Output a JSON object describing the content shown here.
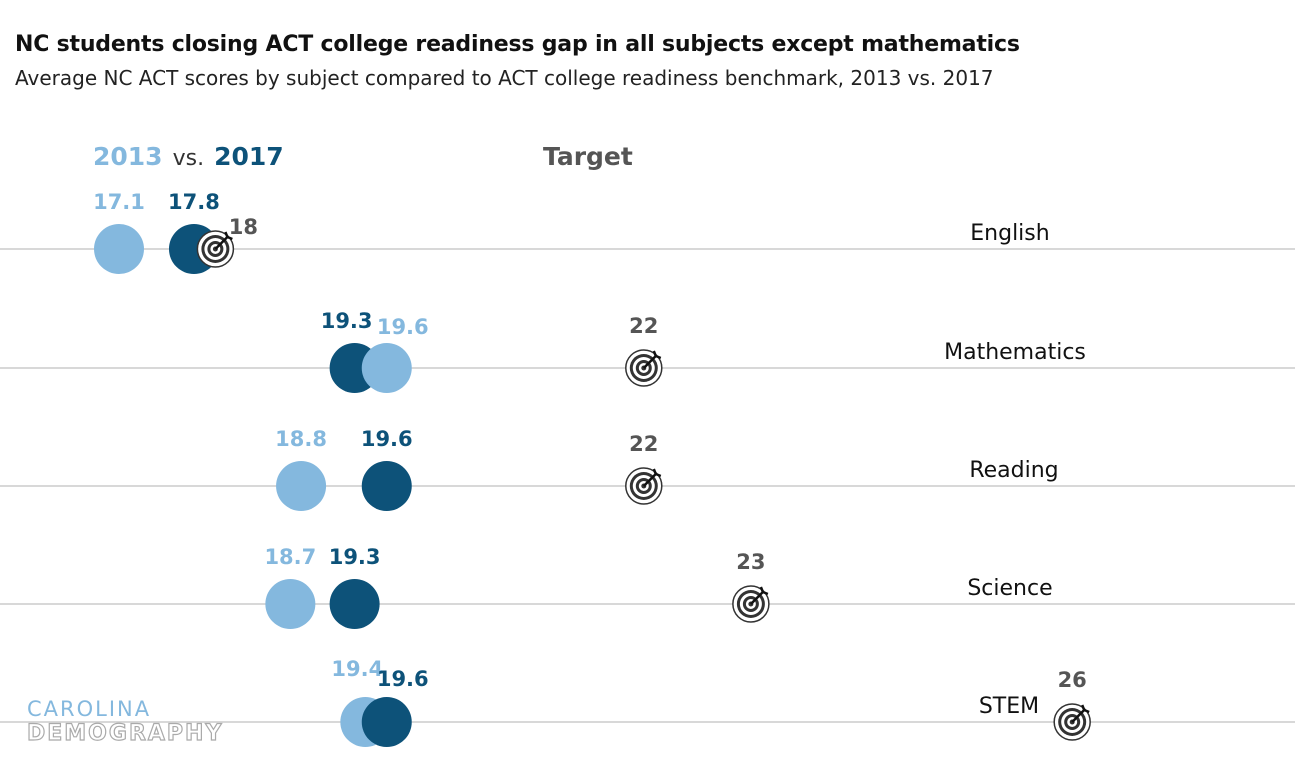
{
  "title": "NC students closing ACT college readiness gap in all subjects except mathematics",
  "subtitle": "Average NC ACT scores by subject compared to ACT college readiness benchmark, 2013 vs. 2017",
  "legend": {
    "label_2013": "2013",
    "label_vs": "vs.",
    "label_2017": "2017",
    "target_label": "Target"
  },
  "logo": {
    "line1": "CAROLINA",
    "line2": "DEMOGRAPHY"
  },
  "colors": {
    "c2013": "#84b8de",
    "c2017": "#0d5279",
    "target": "#555555",
    "grid": "#cccccc"
  },
  "chart_data": {
    "type": "scatter",
    "title": "NC students closing ACT college readiness gap in all subjects except mathematics",
    "subtitle": "Average NC ACT scores by subject compared to ACT college readiness benchmark, 2013 vs. 2017",
    "categories": [
      "English",
      "Mathematics",
      "Reading",
      "Science",
      "STEM"
    ],
    "series": [
      {
        "name": "2013",
        "values": [
          17.1,
          19.6,
          18.8,
          18.7,
          19.4
        ]
      },
      {
        "name": "2017",
        "values": [
          17.8,
          19.3,
          19.6,
          19.3,
          19.6
        ]
      },
      {
        "name": "Target",
        "values": [
          18,
          22,
          22,
          23,
          26
        ]
      }
    ],
    "value_labels_2013": [
      "17.1",
      "19.6",
      "18.8",
      "18.7",
      "19.4"
    ],
    "value_labels_2017": [
      "17.8",
      "19.3",
      "19.6",
      "19.3",
      "19.6"
    ],
    "value_labels_target": [
      "18",
      "22",
      "22",
      "23",
      "26"
    ],
    "grid": true,
    "legend_position": "top-left"
  }
}
